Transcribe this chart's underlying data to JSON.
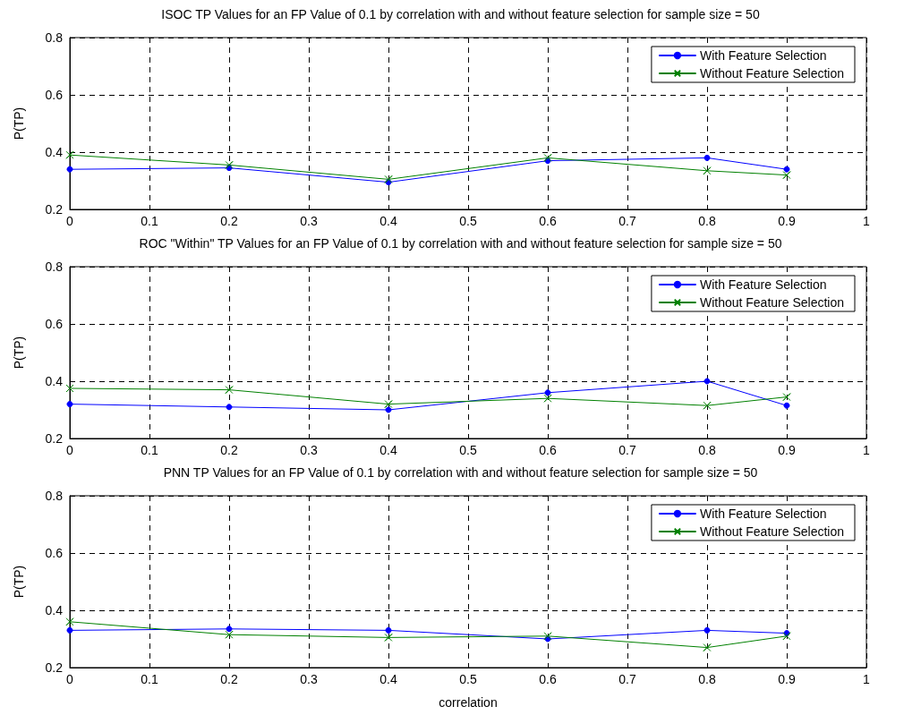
{
  "chart_data": [
    {
      "type": "line",
      "title": "ISOC TP Values for an FP Value of 0.1 by correlation with and without feature selection for sample size = 50",
      "ylabel": "P(TP)",
      "x": [
        0,
        0.2,
        0.4,
        0.6,
        0.8,
        0.9
      ],
      "xlim": [
        0,
        1
      ],
      "xticks": [
        0,
        0.1,
        0.2,
        0.3,
        0.4,
        0.5,
        0.6,
        0.7,
        0.8,
        0.9,
        1
      ],
      "ylim": [
        0.2,
        0.8
      ],
      "yticks": [
        0.2,
        0.4,
        0.6,
        0.8
      ],
      "grid": true,
      "legend": "top right",
      "line_style": "solid",
      "series": [
        {
          "name": "With Feature Selection",
          "color": "#0000ff",
          "marker": "circle",
          "values": [
            0.34,
            0.345,
            0.295,
            0.37,
            0.38,
            0.34
          ]
        },
        {
          "name": "Without Feature Selection",
          "color": "#008000",
          "marker": "cross",
          "values": [
            0.39,
            0.355,
            0.305,
            0.38,
            0.335,
            0.32
          ]
        }
      ]
    },
    {
      "type": "line",
      "title": "ROC \"Within\" TP Values for an FP Value of 0.1 by correlation with and without feature selection for sample size = 50",
      "ylabel": "P(TP)",
      "x": [
        0,
        0.2,
        0.4,
        0.6,
        0.8,
        0.9
      ],
      "xlim": [
        0,
        1
      ],
      "xticks": [
        0,
        0.1,
        0.2,
        0.3,
        0.4,
        0.5,
        0.6,
        0.7,
        0.8,
        0.9,
        1
      ],
      "ylim": [
        0.2,
        0.8
      ],
      "yticks": [
        0.2,
        0.4,
        0.6,
        0.8
      ],
      "grid": true,
      "legend": "top right",
      "line_style": "solid",
      "series": [
        {
          "name": "With Feature Selection",
          "color": "#0000ff",
          "marker": "circle",
          "values": [
            0.32,
            0.31,
            0.3,
            0.36,
            0.4,
            0.315
          ]
        },
        {
          "name": "Without Feature Selection",
          "color": "#008000",
          "marker": "cross",
          "values": [
            0.375,
            0.37,
            0.32,
            0.34,
            0.315,
            0.345
          ]
        }
      ]
    },
    {
      "type": "line",
      "title": "PNN TP Values for an FP Value of 0.1 by correlation with and without feature selection for sample size = 50",
      "xlabel": "correlation",
      "ylabel": "P(TP)",
      "x": [
        0,
        0.2,
        0.4,
        0.6,
        0.8,
        0.9
      ],
      "xlim": [
        0,
        1
      ],
      "xticks": [
        0,
        0.1,
        0.2,
        0.3,
        0.4,
        0.5,
        0.6,
        0.7,
        0.8,
        0.9,
        1
      ],
      "ylim": [
        0.2,
        0.8
      ],
      "yticks": [
        0.2,
        0.4,
        0.6,
        0.8
      ],
      "grid": true,
      "legend": "top right",
      "line_style": "solid",
      "series": [
        {
          "name": "With Feature Selection",
          "color": "#0000ff",
          "marker": "circle",
          "values": [
            0.33,
            0.335,
            0.33,
            0.3,
            0.33,
            0.32
          ]
        },
        {
          "name": "Without Feature Selection",
          "color": "#008000",
          "marker": "cross",
          "values": [
            0.36,
            0.315,
            0.305,
            0.31,
            0.27,
            0.31
          ]
        }
      ]
    }
  ]
}
